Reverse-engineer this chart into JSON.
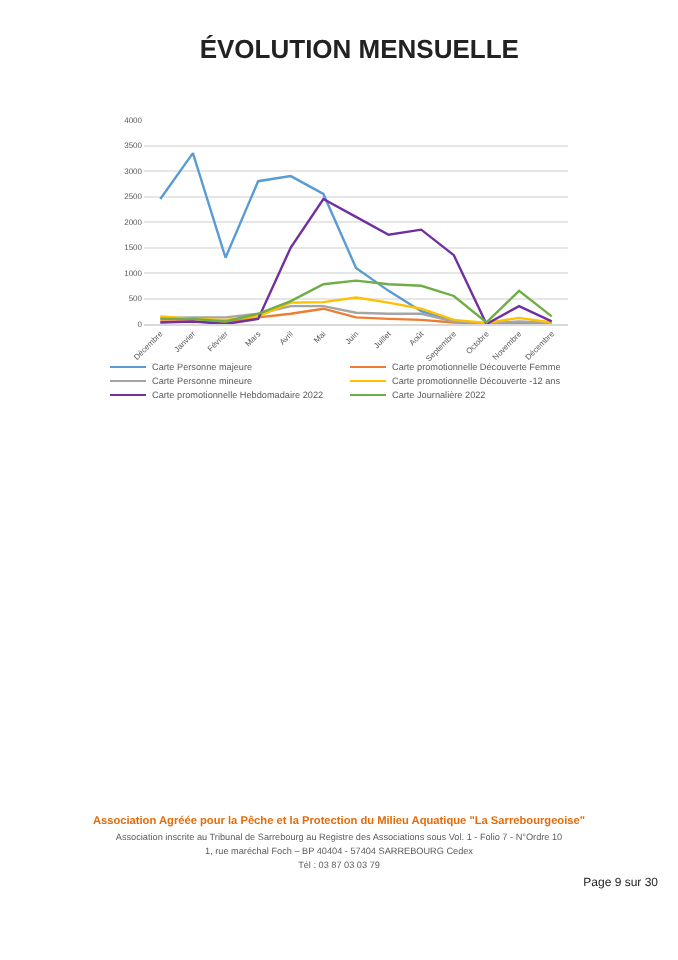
{
  "chart_data": {
    "type": "line",
    "title": "ÉVOLUTION MENSUELLE",
    "categories": [
      "Décembre",
      "Janvier",
      "Février",
      "Mars",
      "Avril",
      "Mai",
      "Juin",
      "Juillet",
      "Août",
      "Septembre",
      "Octobre",
      "Novembre",
      "Décembre"
    ],
    "series": [
      {
        "name": "Carte Personne majeure",
        "color": "#5b9bd5",
        "values": [
          2450,
          3350,
          1300,
          2800,
          2900,
          2550,
          1100,
          650,
          250,
          50,
          0,
          null,
          null
        ]
      },
      {
        "name": "Carte promotionnelle Découverte Femme",
        "color": "#ed7d31",
        "values": [
          50,
          50,
          30,
          130,
          200,
          300,
          130,
          100,
          80,
          30,
          10,
          30,
          10
        ]
      },
      {
        "name": "Carte Personne mineure",
        "color": "#a5a5a5",
        "values": [
          120,
          130,
          130,
          200,
          350,
          350,
          220,
          200,
          200,
          50,
          10,
          50,
          20
        ]
      },
      {
        "name": "Carte promotionnelle Découverte -12 ans",
        "color": "#ffc000",
        "values": [
          150,
          100,
          80,
          150,
          420,
          430,
          520,
          420,
          300,
          80,
          20,
          120,
          30
        ]
      },
      {
        "name": "Carte promotionnelle Hebdomadaire 2022",
        "color": "#7030a0",
        "values": [
          30,
          50,
          0,
          100,
          1500,
          2450,
          2100,
          1750,
          1850,
          1350,
          0,
          350,
          50
        ]
      },
      {
        "name": "Carte Journalière 2022",
        "color": "#70ad47",
        "values": [
          100,
          100,
          50,
          200,
          450,
          780,
          850,
          780,
          750,
          550,
          30,
          650,
          150
        ]
      }
    ],
    "ylim": [
      0,
      4000
    ],
    "yticks": [
      0,
      500,
      1000,
      1500,
      2000,
      2500,
      3000,
      3500,
      4000
    ],
    "grid": "y",
    "legend": "bottom",
    "marker": "none",
    "line_style": "solid",
    "annotations": [
      "Association Agréée pour la Pêche et la Protection du Milieu Aquatique \"La Sarrebourgeoise\"",
      "Association inscrite au Tribunal de Sarrebourg au Registre des Associations sous Vol. 1 - Folio 7 - N°Ordre 10",
      "1, rue maréchal Foch – BP 40404 - 57404 SARREBOURG Cedex",
      "Tél : 03 87 03 03 79",
      "Page 9 sur 30"
    ]
  }
}
